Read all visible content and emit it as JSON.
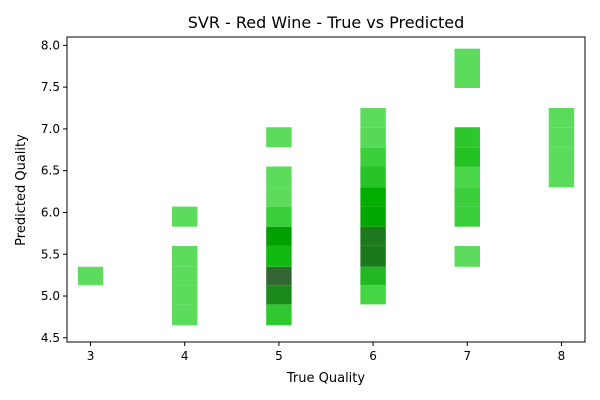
{
  "chart_data": {
    "type": "heatmap",
    "title": "SVR - Red Wine - True vs Predicted",
    "xlabel": "True Quality",
    "ylabel": "Predicted Quality",
    "xlim": [
      2.75,
      8.25
    ],
    "ylim": [
      4.45,
      8.1
    ],
    "x_ticks": [
      3,
      4,
      5,
      6,
      7,
      8
    ],
    "y_ticks": [
      4.5,
      5.0,
      5.5,
      6.0,
      6.5,
      7.0,
      7.5,
      8.0
    ],
    "x_tick_labels": [
      "3",
      "4",
      "5",
      "6",
      "7",
      "8"
    ],
    "y_tick_labels": [
      "4.5",
      "5.0",
      "5.5",
      "6.0",
      "6.5",
      "7.0",
      "7.5",
      "8.0"
    ],
    "bin_width": 0.27,
    "grid": false,
    "color_scale": {
      "low": "#5cdb5c",
      "high": "#2f6b2f"
    },
    "cells": [
      {
        "x": 3,
        "y0": 5.13,
        "y1": 5.35,
        "color": "#5cdb5c"
      },
      {
        "x": 4,
        "y0": 4.65,
        "y1": 4.9,
        "color": "#5cdb5c"
      },
      {
        "x": 4,
        "y0": 4.9,
        "y1": 5.13,
        "color": "#5cdb5c"
      },
      {
        "x": 4,
        "y0": 5.13,
        "y1": 5.35,
        "color": "#5cdb5c"
      },
      {
        "x": 4,
        "y0": 5.35,
        "y1": 5.6,
        "color": "#5cdb5c"
      },
      {
        "x": 4,
        "y0": 5.83,
        "y1": 6.07,
        "color": "#5cdb5c"
      },
      {
        "x": 5,
        "y0": 4.65,
        "y1": 4.9,
        "color": "#2fc82f"
      },
      {
        "x": 5,
        "y0": 4.9,
        "y1": 5.13,
        "color": "#1a8a1a"
      },
      {
        "x": 5,
        "y0": 5.13,
        "y1": 5.35,
        "color": "#336633"
      },
      {
        "x": 5,
        "y0": 5.35,
        "y1": 5.6,
        "color": "#10b810"
      },
      {
        "x": 5,
        "y0": 5.6,
        "y1": 5.83,
        "color": "#00a000"
      },
      {
        "x": 5,
        "y0": 5.83,
        "y1": 6.07,
        "color": "#3ccf3c"
      },
      {
        "x": 5,
        "y0": 6.07,
        "y1": 6.3,
        "color": "#5cdb5c"
      },
      {
        "x": 5,
        "y0": 6.3,
        "y1": 6.55,
        "color": "#5cdb5c"
      },
      {
        "x": 5,
        "y0": 6.78,
        "y1": 7.02,
        "color": "#5cdb5c"
      },
      {
        "x": 6,
        "y0": 4.9,
        "y1": 5.13,
        "color": "#44d444"
      },
      {
        "x": 6,
        "y0": 5.13,
        "y1": 5.35,
        "color": "#22b822"
      },
      {
        "x": 6,
        "y0": 5.35,
        "y1": 5.6,
        "color": "#1a7a1a"
      },
      {
        "x": 6,
        "y0": 5.6,
        "y1": 5.83,
        "color": "#1e781e"
      },
      {
        "x": 6,
        "y0": 5.83,
        "y1": 6.07,
        "color": "#00a800"
      },
      {
        "x": 6,
        "y0": 6.07,
        "y1": 6.3,
        "color": "#00ae00"
      },
      {
        "x": 6,
        "y0": 6.3,
        "y1": 6.55,
        "color": "#26c426"
      },
      {
        "x": 6,
        "y0": 6.55,
        "y1": 6.78,
        "color": "#3ccf3c"
      },
      {
        "x": 6,
        "y0": 6.78,
        "y1": 7.02,
        "color": "#58d858"
      },
      {
        "x": 6,
        "y0": 7.02,
        "y1": 7.25,
        "color": "#5cdb5c"
      },
      {
        "x": 7,
        "y0": 5.35,
        "y1": 5.6,
        "color": "#5cdb5c"
      },
      {
        "x": 7,
        "y0": 5.83,
        "y1": 6.07,
        "color": "#3ccf3c"
      },
      {
        "x": 7,
        "y0": 6.07,
        "y1": 6.3,
        "color": "#3ccf3c"
      },
      {
        "x": 7,
        "y0": 6.3,
        "y1": 6.55,
        "color": "#48d548"
      },
      {
        "x": 7,
        "y0": 6.55,
        "y1": 6.78,
        "color": "#22c222"
      },
      {
        "x": 7,
        "y0": 6.78,
        "y1": 7.02,
        "color": "#2dc62d"
      },
      {
        "x": 7,
        "y0": 7.49,
        "y1": 7.96,
        "color": "#5cdb5c"
      },
      {
        "x": 8,
        "y0": 6.3,
        "y1": 6.55,
        "color": "#5cdb5c"
      },
      {
        "x": 8,
        "y0": 6.55,
        "y1": 6.78,
        "color": "#5cdb5c"
      },
      {
        "x": 8,
        "y0": 6.78,
        "y1": 7.02,
        "color": "#5cdb5c"
      },
      {
        "x": 8,
        "y0": 7.02,
        "y1": 7.25,
        "color": "#5cdb5c"
      }
    ]
  }
}
